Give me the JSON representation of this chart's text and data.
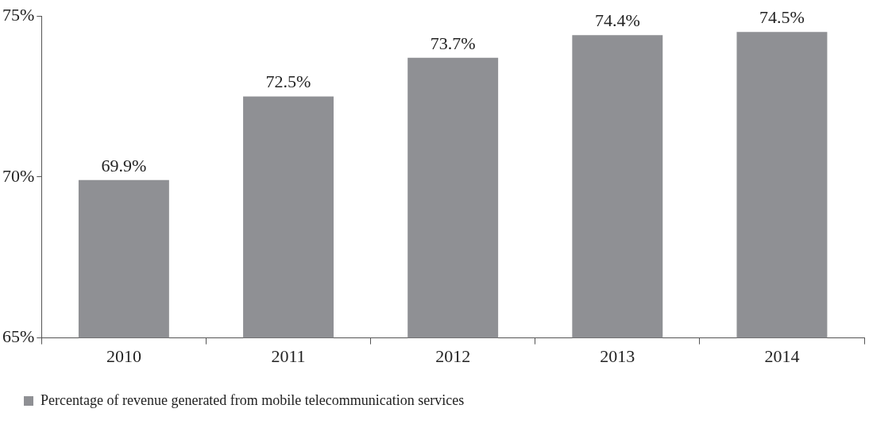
{
  "chart_data": {
    "type": "bar",
    "categories": [
      "2010",
      "2011",
      "2012",
      "2013",
      "2014"
    ],
    "series": [
      {
        "name": "Percentage of revenue generated from mobile telecommunication services",
        "color": "#8f9094",
        "values": [
          69.9,
          72.5,
          73.7,
          74.4,
          74.5
        ],
        "value_labels": [
          "69.9%",
          "72.5%",
          "73.7%",
          "74.4%",
          "74.5%"
        ]
      }
    ],
    "ylim": [
      65,
      75
    ],
    "yticks": [
      {
        "value": 65,
        "label": "65%"
      },
      {
        "value": 70,
        "label": "70%"
      },
      {
        "value": 75,
        "label": "75%"
      }
    ],
    "grid": false,
    "legend": "bottom left"
  }
}
